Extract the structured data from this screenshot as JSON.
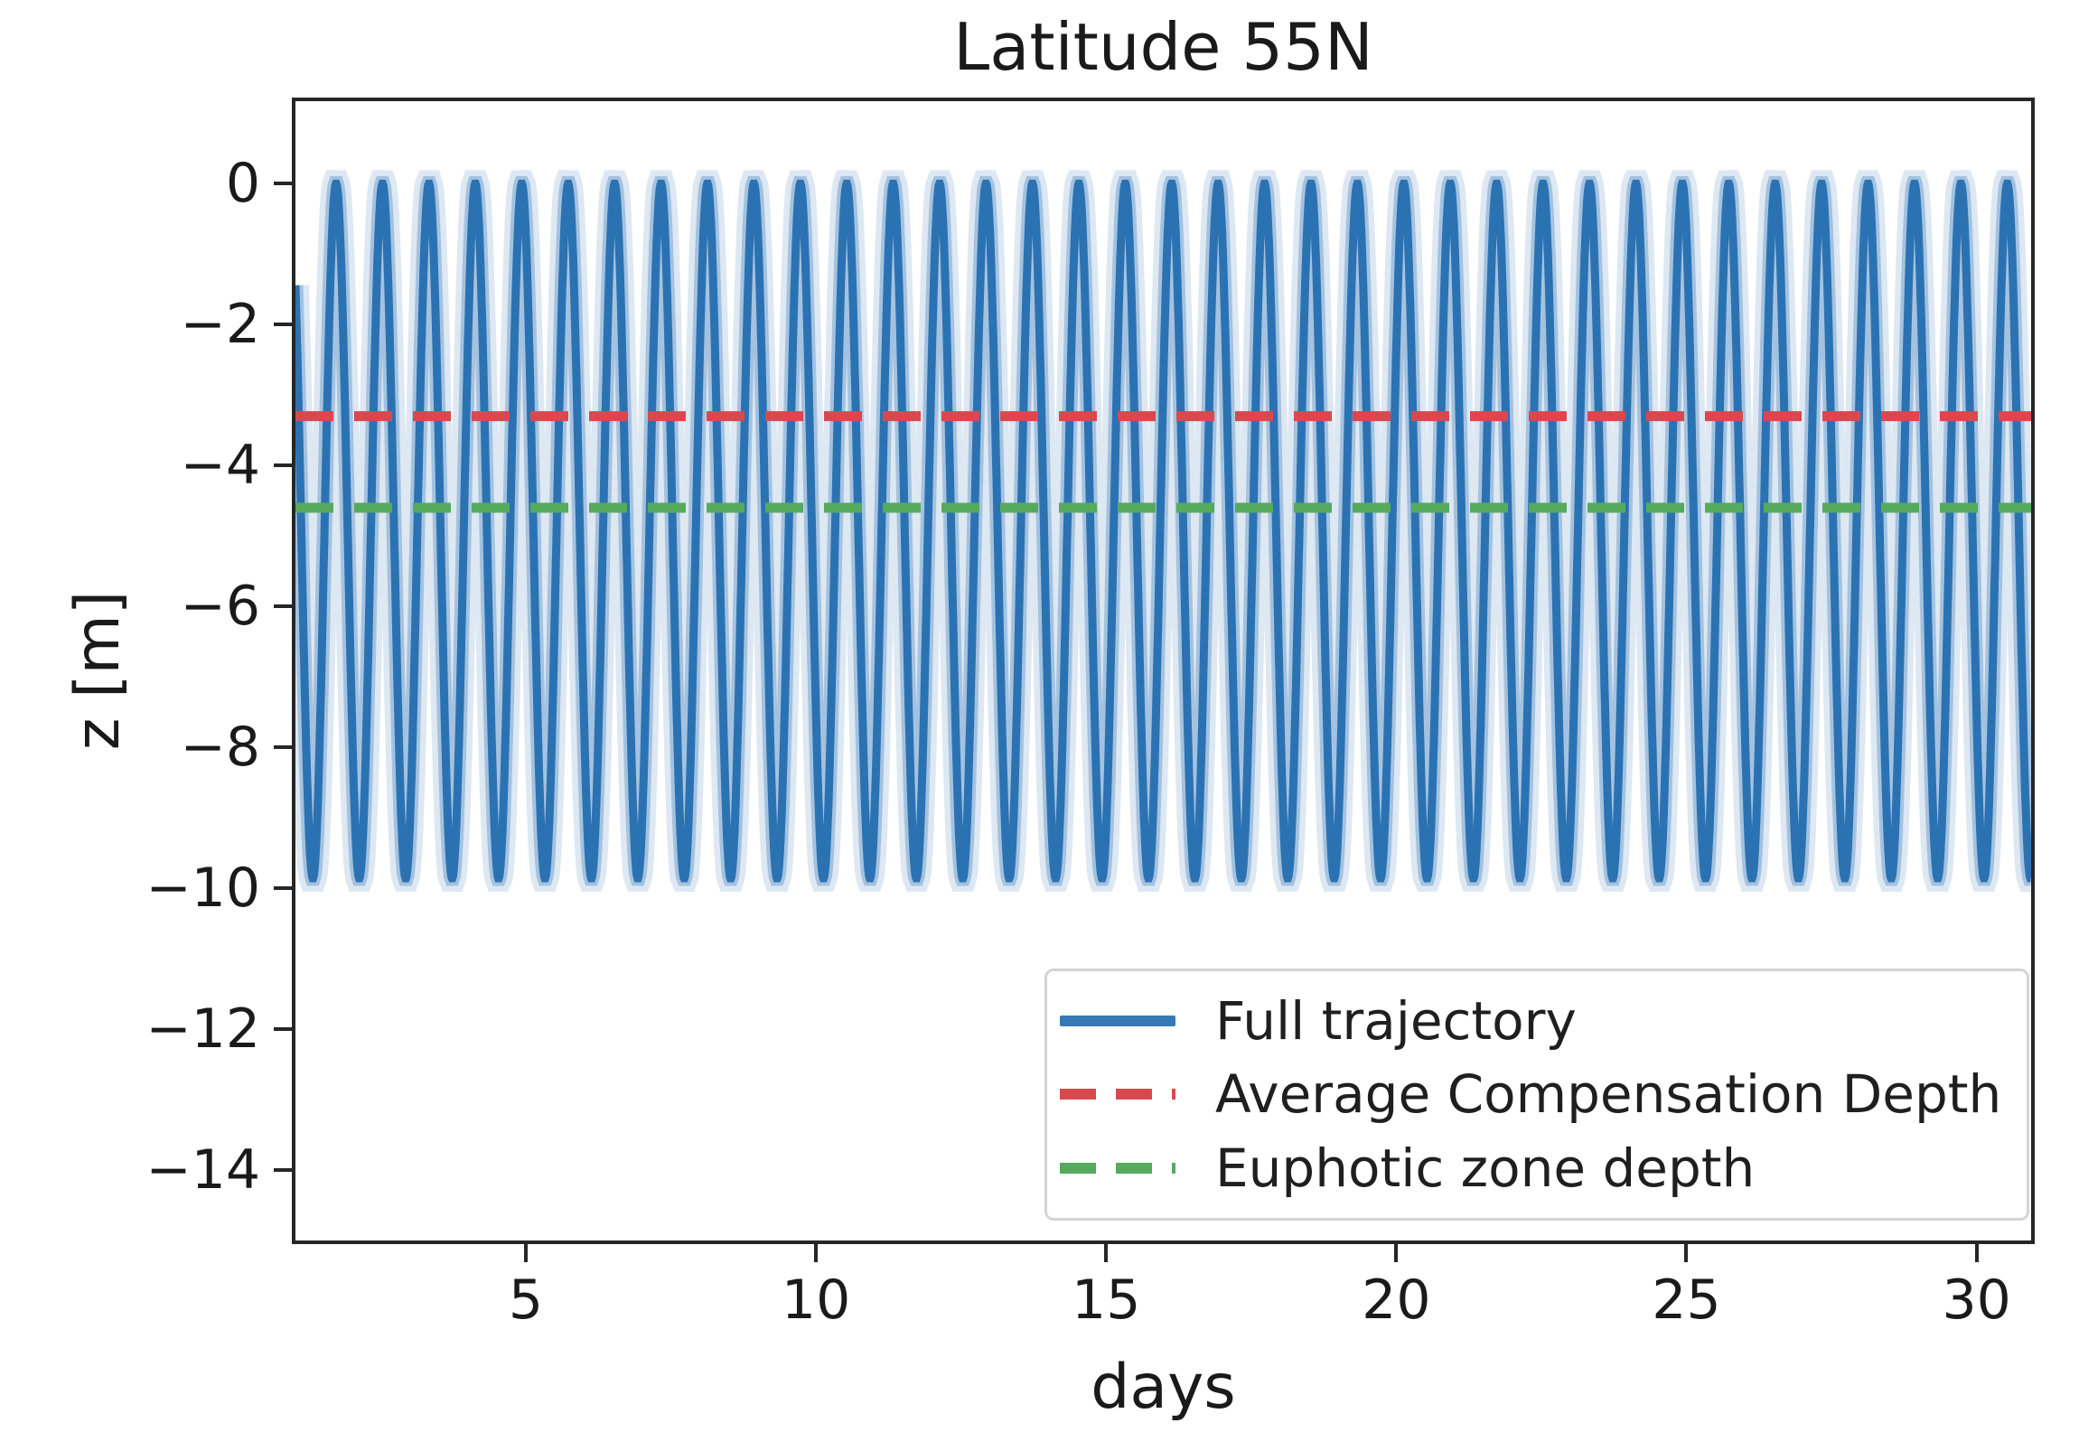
{
  "title": "Latitude 55N",
  "axes": {
    "xlabel": "days",
    "ylabel": "z [m]",
    "x_tick_labels": [
      "5",
      "10",
      "15",
      "20",
      "25",
      "30"
    ],
    "y_tick_labels": [
      "0",
      "−2",
      "−4",
      "−6",
      "−8",
      "−10",
      "−12",
      "−14"
    ]
  },
  "legend": {
    "position": "lower right",
    "items": [
      {
        "label": "Full trajectory",
        "style": "solid",
        "color": "#3579b5"
      },
      {
        "label": "Average Compensation Depth",
        "style": "dashed",
        "color": "#d8494f"
      },
      {
        "label": "Euphotic zone depth",
        "style": "dashed",
        "color": "#55aa5e"
      }
    ]
  },
  "colors": {
    "trajectory": "#2b72b3",
    "trajectory_halo": "#5b97cc",
    "compensation_depth": "#d8494f",
    "euphotic_depth": "#55aa5e",
    "axis": "#262626",
    "background": "#ffffff"
  },
  "chart_data": {
    "type": "line",
    "title": "Latitude 55N",
    "xlabel": "days",
    "ylabel": "z [m]",
    "xlim": [
      1.03,
      30.94
    ],
    "ylim": [
      -15.0,
      1.17
    ],
    "x_ticks": [
      5,
      10,
      15,
      20,
      25,
      30
    ],
    "y_ticks": [
      0,
      -2,
      -4,
      -6,
      -8,
      -10,
      -12,
      -14
    ],
    "grid": false,
    "legend_position": "lower right",
    "series": [
      {
        "name": "Full trajectory",
        "kind": "periodic-vertical-migration",
        "shape": "cosine",
        "z_max": 0,
        "z_min": -9.86,
        "period_days": 0.8,
        "first_peak_day": 1.73,
        "x_start": 1.03,
        "x_end": 30.94,
        "color": "#2b72b3",
        "linestyle": "solid"
      },
      {
        "name": "Average Compensation Depth",
        "kind": "horizontal-line",
        "constant_z": -3.3,
        "color": "#d8494f",
        "linestyle": "dashed"
      },
      {
        "name": "Euphotic zone depth",
        "kind": "horizontal-line",
        "constant_z": -4.6,
        "color": "#55aa5e",
        "linestyle": "dashed"
      }
    ]
  }
}
